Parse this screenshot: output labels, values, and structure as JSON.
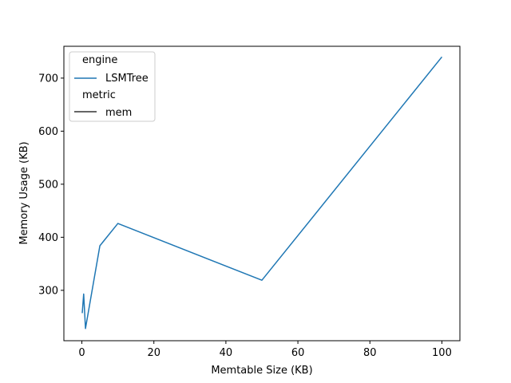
{
  "chart_data": {
    "type": "line",
    "xlabel": "Memtable Size (KB)",
    "ylabel": "Memory Usage (KB)",
    "xlim": [
      -5,
      105
    ],
    "ylim": [
      205,
      760
    ],
    "xticks": [
      0,
      20,
      40,
      60,
      80,
      100
    ],
    "yticks": [
      300,
      400,
      500,
      600,
      700
    ],
    "grid": false,
    "legend": {
      "placement": "top-left",
      "hue_title": "engine",
      "style_title": "metric",
      "entries": [
        {
          "group": "engine",
          "label": "LSMTree",
          "color": "#1f77b4"
        },
        {
          "group": "metric",
          "label": "mem",
          "color": "#333333"
        }
      ]
    },
    "series": [
      {
        "name": "LSMTree",
        "color": "#1f77b4",
        "points": [
          {
            "x": 0.1,
            "y": 257
          },
          {
            "x": 0.5,
            "y": 293
          },
          {
            "x": 1,
            "y": 228
          },
          {
            "x": 5,
            "y": 384
          },
          {
            "x": 10,
            "y": 426
          },
          {
            "x": 50,
            "y": 319
          },
          {
            "x": 100,
            "y": 740
          }
        ]
      }
    ]
  }
}
